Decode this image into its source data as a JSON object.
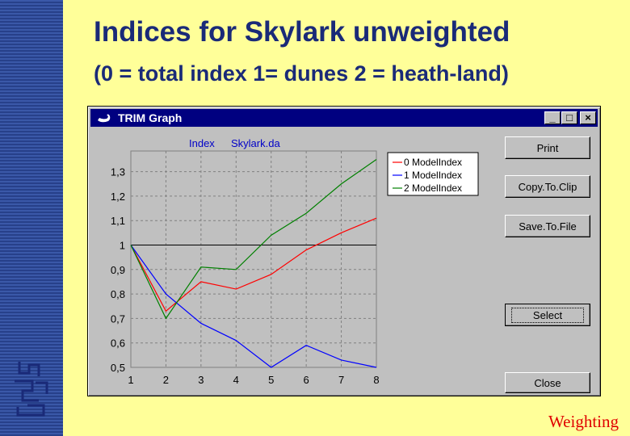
{
  "slide": {
    "title": "Indices for Skylark unweighted",
    "subtitle": "(0 = total index 1= dunes 2 = heath-land)",
    "footer": "Weighting",
    "accent_colors": {
      "background": "#ffff99",
      "title": "#1a2a78",
      "footer": "#e00000",
      "stripe": "#3a58a8"
    },
    "logo_icon": "cbs-logo-icon"
  },
  "window": {
    "title": "TRIM Graph",
    "app_icon": "swan-icon",
    "controls": {
      "minimize": "_",
      "maximize": "□",
      "close": "×"
    },
    "buttons": {
      "print": "Print",
      "copy": "Copy.To.Clip",
      "save": "Save.To.File",
      "select": "Select",
      "close": "Close"
    }
  },
  "chart_data": {
    "type": "line",
    "header_left": "Index",
    "header_right": "Skylark.da",
    "x": [
      1,
      2,
      3,
      4,
      5,
      6,
      7,
      8
    ],
    "x_ticks": [
      "1",
      "2",
      "3",
      "4",
      "5",
      "6",
      "7",
      "8"
    ],
    "y_ticks": [
      "0,5",
      "0,6",
      "0,7",
      "0,8",
      "0,9",
      "1",
      "1,1",
      "1,2",
      "1,3"
    ],
    "xlim": [
      1,
      8
    ],
    "ylim": [
      0.5,
      1.35
    ],
    "reference_line": 1.0,
    "grid": true,
    "legend_position": "top-right",
    "series": [
      {
        "name": "0 ModelIndex",
        "color": "#ff0000",
        "values": [
          1.0,
          0.73,
          0.85,
          0.82,
          0.88,
          0.98,
          1.05,
          1.11
        ]
      },
      {
        "name": "1 ModelIndex",
        "color": "#0000ff",
        "values": [
          1.0,
          0.8,
          0.68,
          0.61,
          0.5,
          0.59,
          0.53,
          0.5
        ]
      },
      {
        "name": "2 ModelIndex",
        "color": "#008000",
        "values": [
          1.0,
          0.7,
          0.91,
          0.9,
          1.04,
          1.13,
          1.25,
          1.36
        ]
      }
    ]
  }
}
